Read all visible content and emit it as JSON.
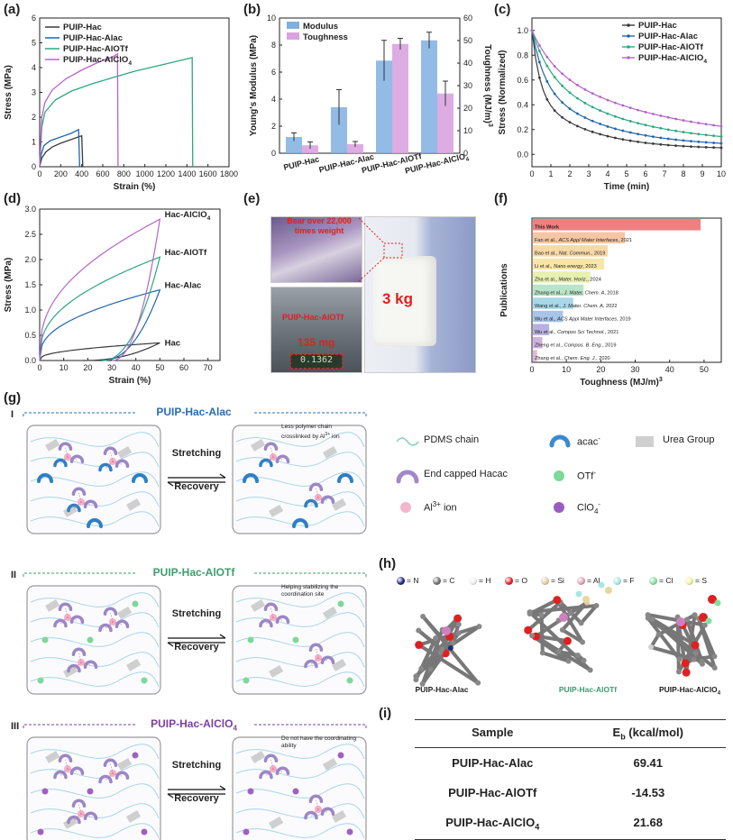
{
  "panel_labels": {
    "a": "(a)",
    "b": "(b)",
    "c": "(c)",
    "d": "(d)",
    "e": "(e)",
    "f": "(f)",
    "g": "(g)",
    "h": "(h)",
    "i": "(i)"
  },
  "colors": {
    "hac": "#3a3a3a",
    "alac": "#2166ac",
    "alotf": "#2ca87f",
    "alclo4": "#b565c9",
    "modulus": "#7fb0e0",
    "toughness": "#d9a3e0"
  },
  "panel_a": {
    "chart_data": {
      "type": "line",
      "xlabel": "Strain (%)",
      "ylabel": "Stress (MPa)",
      "xlim": [
        0,
        1800
      ],
      "ylim": [
        0,
        6
      ],
      "xticks": [
        0,
        200,
        400,
        600,
        800,
        1000,
        1200,
        1400,
        1600,
        1800
      ],
      "yticks": [
        0,
        1,
        2,
        3,
        4,
        5,
        6
      ],
      "series": [
        {
          "name": "PUIP-Hac",
          "color_key": "hac",
          "x": [
            0,
            20,
            60,
            120,
            200,
            300,
            400,
            410
          ],
          "y": [
            0,
            0.35,
            0.6,
            0.8,
            0.95,
            1.1,
            1.25,
            0
          ]
        },
        {
          "name": "PUIP-Hac-Alac",
          "color_key": "alac",
          "x": [
            0,
            15,
            40,
            100,
            200,
            300,
            370,
            380
          ],
          "y": [
            0,
            0.5,
            0.85,
            1.05,
            1.2,
            1.35,
            1.5,
            0
          ]
        },
        {
          "name": "PUIP-Hac-AlOTf",
          "color_key": "alotf",
          "x": [
            0,
            20,
            50,
            150,
            300,
            500,
            700,
            900,
            1100,
            1300,
            1450,
            1455
          ],
          "y": [
            0,
            1.6,
            2.2,
            2.7,
            3.05,
            3.35,
            3.6,
            3.85,
            4.05,
            4.25,
            4.4,
            0
          ]
        },
        {
          "name": "PUIP-Hac-AlClO",
          "name_sub": "4",
          "color_key": "alclo4",
          "x": [
            0,
            20,
            50,
            120,
            250,
            400,
            550,
            700,
            740,
            745
          ],
          "y": [
            0,
            2.0,
            2.6,
            3.1,
            3.55,
            3.9,
            4.2,
            4.45,
            4.55,
            0
          ]
        }
      ]
    }
  },
  "panel_b": {
    "chart_data": {
      "type": "bar",
      "categories": [
        "PUIP-Hac",
        "PUIP-Hac-Alac",
        "PUIP-Hac-AlOTf",
        "PUIP-Hac-AlClO4"
      ],
      "category_labels": [
        "PUIP-Hac",
        "PUIP-Hac-Alac",
        "PUIP-Hac-AlOTf",
        "PUIP-Hac-AlClO"
      ],
      "category_subs": [
        "",
        "",
        "",
        "4"
      ],
      "series": [
        {
          "name": "Modulus",
          "axis": "left",
          "values": [
            1.2,
            3.4,
            6.85,
            8.35
          ],
          "errors": [
            0.3,
            1.3,
            1.5,
            0.6
          ]
        },
        {
          "name": "Toughness",
          "axis": "right",
          "values": [
            3.5,
            4.0,
            48.5,
            26.5
          ],
          "errors": [
            1.5,
            1.2,
            2.5,
            5.5
          ]
        }
      ],
      "ylabel_left": "Young's Modulus (MPa)",
      "ylabel_right": "Toughness (MJ/m",
      "ylabel_right_sup": "3",
      "ylim_left": [
        0,
        10
      ],
      "ylim_right": [
        0,
        60
      ],
      "yticks_left": [
        0,
        2,
        4,
        6,
        8,
        10
      ],
      "yticks_right": [
        0,
        10,
        20,
        30,
        40,
        50,
        60
      ]
    }
  },
  "panel_c": {
    "chart_data": {
      "type": "line",
      "xlabel": "Time (min)",
      "ylabel": "Stress (Normalized)",
      "xlim": [
        0,
        10
      ],
      "ylim": [
        -0.1,
        1.1
      ],
      "xticks": [
        0,
        1,
        2,
        3,
        4,
        5,
        6,
        7,
        8,
        9,
        10
      ],
      "yticks": [
        0.0,
        0.2,
        0.4,
        0.6,
        0.8,
        1.0
      ],
      "series": [
        {
          "name": "PUIP-Hac",
          "color_key": "hac",
          "k": [
            0.55,
            1.2,
            0.04
          ]
        },
        {
          "name": "PUIP-Hac-Alac",
          "color_key": "alac",
          "k": [
            0.45,
            0.8,
            0.06
          ]
        },
        {
          "name": "PUIP-Hac-AlOTf",
          "color_key": "alotf",
          "k": [
            0.35,
            0.55,
            0.08
          ]
        },
        {
          "name": "PUIP-Hac-AlClO",
          "name_sub": "4",
          "color_key": "alclo4",
          "k": [
            0.3,
            0.45,
            0.1
          ]
        }
      ]
    }
  },
  "panel_d": {
    "chart_data": {
      "type": "line",
      "xlabel": "Strain (%)",
      "ylabel": "Stress (MPa)",
      "xlim": [
        0,
        75
      ],
      "ylim": [
        0,
        3.0
      ],
      "xticks": [
        0,
        10,
        20,
        30,
        40,
        50,
        60,
        70
      ],
      "yticks": [
        0.0,
        0.5,
        1.0,
        1.5,
        2.0,
        2.5,
        3.0
      ],
      "series": [
        {
          "name": "Hac",
          "color_key": "hac",
          "peak": 0.35,
          "offset": 18
        },
        {
          "name": "Hac-Alac",
          "color_key": "alac",
          "peak": 1.4,
          "offset": 26
        },
        {
          "name": "Hac-AlOTf",
          "color_key": "alotf",
          "peak": 2.05,
          "offset": 26
        },
        {
          "name": "Hac-AlClO",
          "name_sub": "4",
          "color_key": "alclo4",
          "peak": 2.8,
          "offset": 30
        }
      ]
    }
  },
  "panel_e": {
    "caption_top": "Bear over 22,000",
    "caption_top2": "times weight",
    "sample_label": "PUIP-Hac-AlOTf",
    "mass": "135 mg",
    "scale_reading": "0.1362",
    "weight": "3 kg"
  },
  "panel_f": {
    "chart_data": {
      "type": "bar",
      "orientation": "horizontal",
      "xlabel": "Toughness (MJ/m",
      "xlabel_sup": "3",
      "ylabel": "Publications",
      "xlim": [
        0,
        55
      ],
      "xticks": [
        0,
        10,
        20,
        30,
        40,
        50
      ],
      "entries": [
        {
          "a": "This Work",
          "b": "",
          "c": "",
          "value": 49,
          "color": "#f08080"
        },
        {
          "a": "Fan et al., ",
          "b": "ACS Appl Mater Interfaces",
          "c": ", 2021",
          "value": 27,
          "color": "#f5c6a5"
        },
        {
          "a": "Bao et al., ",
          "b": "Nat. Commun.",
          "c": ", 2019",
          "value": 22,
          "color": "#f7d9a8"
        },
        {
          "a": "Li et al., ",
          "b": "Nano energy",
          "c": ", 2023",
          "value": 21,
          "color": "#f8e6a8"
        },
        {
          "a": "Zha et al., ",
          "b": "Mater. Horiz.",
          "c": ", 2024",
          "value": 17,
          "color": "#e8f0b0"
        },
        {
          "a": "Zhang et al., ",
          "b": "J. Mater. Chem. A",
          "c": ", 2018",
          "value": 15,
          "color": "#b8e4c8"
        },
        {
          "a": "Wang et al., ",
          "b": "J. Mater. Chem. A",
          "c": ", 2022",
          "value": 12,
          "color": "#a8d8e8"
        },
        {
          "a": "Wu et al., ",
          "b": "ACS Appl Mater Interfaces",
          "c": ", 2019",
          "value": 9,
          "color": "#a8c4e8"
        },
        {
          "a": "Wu et al., ",
          "b": "Compos Sci Technol.",
          "c": ", 2021",
          "value": 5,
          "color": "#b8b0e0"
        },
        {
          "a": "Zheng et al., ",
          "b": "Compos. B. Eng.",
          "c": ", 2019",
          "value": 3,
          "color": "#d0b0e0"
        },
        {
          "a": "Zhang et al., ",
          "b": "Chem. Eng. J.",
          "c": ", 2020",
          "value": 1.5,
          "color": "#e0b8d8"
        }
      ]
    }
  },
  "panel_g": {
    "rows": [
      {
        "roman": "I",
        "title": "PUIP-Hac-Alac",
        "title_sub": "",
        "note": "Less polymer chain crosslinked by Al",
        "note_sup": "3+",
        "note_tail": " ion",
        "color": "#2b6cb0"
      },
      {
        "roman": "II",
        "title": "PUIP-Hac-AlOTf",
        "title_sub": "",
        "note": "Helping stabilizing the coordination site",
        "note_sup": "",
        "note_tail": "",
        "color": "#3c9d6e"
      },
      {
        "roman": "III",
        "title": "PUIP-Hac-AlClO",
        "title_sub": "4",
        "note": "Do not have the coordinating ability",
        "note_sup": "",
        "note_tail": "",
        "color": "#7b3fa0"
      }
    ],
    "arrow_top": "Stretching",
    "arrow_bottom": "Recovery",
    "legend": [
      {
        "label": "PDMS chain",
        "sup": "",
        "sub": "",
        "icon": "pdms-chain-icon"
      },
      {
        "label": "acac",
        "sup": "-",
        "sub": "",
        "icon": "acac-icon"
      },
      {
        "label": "Urea Group",
        "sup": "",
        "sub": "",
        "icon": "urea-group-icon"
      },
      {
        "label": "End capped Hacac",
        "sup": "",
        "sub": "",
        "icon": "hacac-icon"
      },
      {
        "label": "OTf",
        "sup": "-",
        "sub": "",
        "icon": "otf-icon"
      },
      {
        "label": "Al",
        "sup": "3+",
        "sub": "",
        "tail": " ion",
        "icon": "al-ion-icon"
      },
      {
        "label": "ClO",
        "sup": "-",
        "sub": "4",
        "icon": "clo4-icon"
      }
    ]
  },
  "panel_h": {
    "atoms": [
      {
        "label": "= N",
        "color": "#1a237e"
      },
      {
        "label": "= C",
        "color": "#6e6e6e"
      },
      {
        "label": "= H",
        "color": "#eeeeee"
      },
      {
        "label": "= O",
        "color": "#e02020"
      },
      {
        "label": "= Si",
        "color": "#e8c89a"
      },
      {
        "label": "= Al",
        "color": "#e0a0b8"
      },
      {
        "label": "= F",
        "color": "#a8e8e0"
      },
      {
        "label": "= Cl",
        "color": "#80e0a0"
      },
      {
        "label": "= S",
        "color": "#f0f0a0"
      }
    ],
    "names": [
      "PUIP-Hac-Alac",
      "PUIP-Hac-AlOTf",
      "PUIP-Hac-AlClO"
    ],
    "name_subs": [
      "",
      "",
      "4"
    ]
  },
  "panel_i": {
    "header_sample": "Sample",
    "header_eb": "E",
    "header_eb_sub": "b",
    "header_eb_unit": " (kcal/mol)",
    "rows": [
      {
        "sample": "PUIP-Hac-Alac",
        "sub": "",
        "value": "69.41"
      },
      {
        "sample": "PUIP-Hac-AlOTf",
        "sub": "",
        "value": "-14.53"
      },
      {
        "sample": "PUIP-Hac-AlClO",
        "sub": "4",
        "value": "21.68"
      }
    ]
  }
}
